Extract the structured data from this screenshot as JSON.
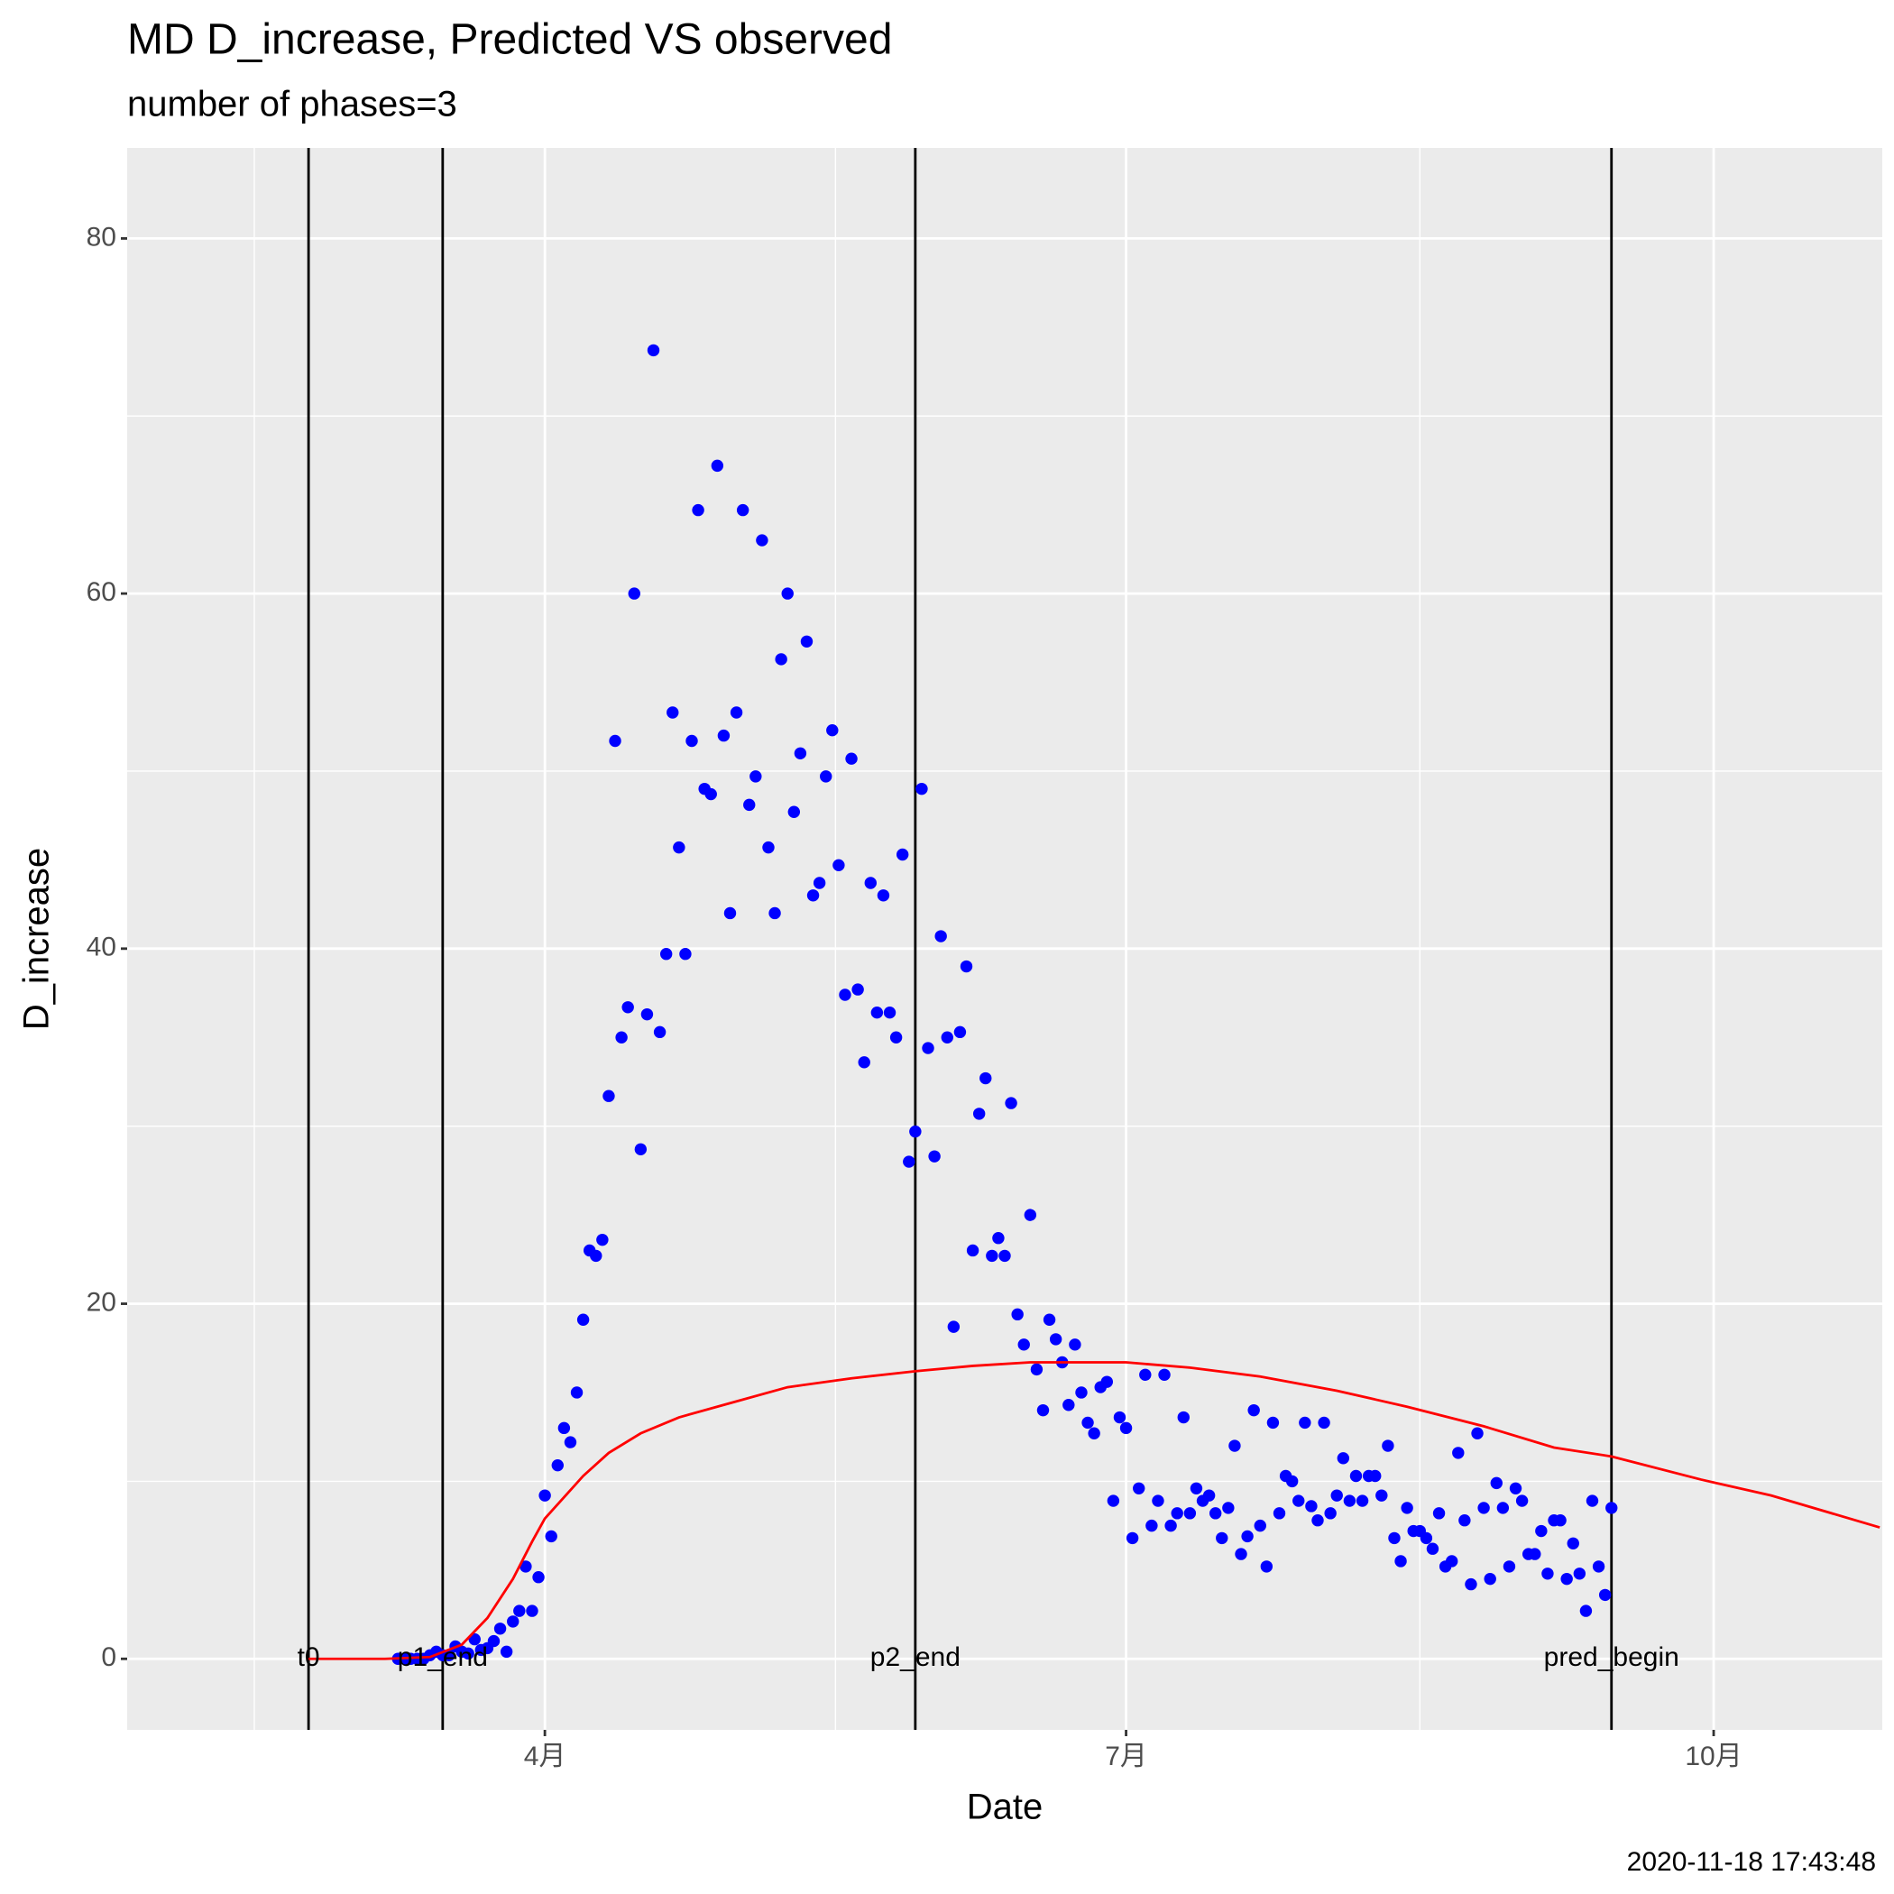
{
  "chart_data": {
    "type": "scatter",
    "title": "MD D_increase, Predicted VS observed",
    "subtitle": "number of phases=3",
    "xlabel": "Date",
    "ylabel": "D_increase",
    "caption": "2020-11-18 17:43:48",
    "xlim": [
      26.6,
      301.4
    ],
    "xticks": [
      {
        "value": 92,
        "label": "4月"
      },
      {
        "value": 183,
        "label": "7月"
      },
      {
        "value": 275,
        "label": "10月"
      }
    ],
    "ylim": [
      -4,
      85.1
    ],
    "yticks": [
      0,
      20,
      40,
      60,
      80
    ],
    "grid": true,
    "background": "#ebebeb",
    "vlines": [
      {
        "x": 55,
        "label": "t0"
      },
      {
        "x": 76,
        "label": "p1_end"
      },
      {
        "x": 150,
        "label": "p2_end"
      },
      {
        "x": 259,
        "label": "pred_begin"
      }
    ],
    "series": [
      {
        "type": "scatter",
        "color": "#0000ff",
        "x": [
          69,
          70,
          71,
          72,
          73,
          74,
          75,
          76,
          77,
          78,
          79,
          80,
          81,
          82,
          83,
          84,
          85,
          86,
          87,
          88,
          89,
          90,
          91,
          92,
          93,
          94,
          95,
          96,
          97,
          98,
          99,
          100,
          101,
          102,
          103,
          104,
          105,
          106,
          107,
          108,
          109,
          110,
          111,
          112,
          113,
          114,
          115,
          116,
          117,
          118,
          119,
          120,
          121,
          122,
          123,
          124,
          125,
          126,
          127,
          128,
          129,
          130,
          131,
          132,
          133,
          134,
          135,
          136,
          137,
          138,
          139,
          140,
          141,
          142,
          143,
          144,
          145,
          146,
          147,
          148,
          149,
          150,
          151,
          152,
          153,
          154,
          155,
          156,
          157,
          158,
          159,
          160,
          161,
          162,
          163,
          164,
          165,
          166,
          167,
          168,
          169,
          170,
          171,
          172,
          173,
          174,
          175,
          176,
          177,
          178,
          179,
          180,
          181,
          182,
          183,
          184,
          185,
          186,
          187,
          188,
          189,
          190,
          191,
          192,
          193,
          194,
          195,
          196,
          197,
          198,
          199,
          200,
          201,
          202,
          203,
          204,
          205,
          206,
          207,
          208,
          209,
          210,
          211,
          212,
          213,
          214,
          215,
          216,
          217,
          218,
          219,
          220,
          221,
          222,
          223,
          224,
          225,
          226,
          227,
          228,
          229,
          230,
          231,
          232,
          233,
          234,
          235,
          236,
          237,
          238,
          239,
          240,
          241,
          242,
          243,
          244,
          245,
          246,
          247,
          248,
          249,
          250,
          251,
          252,
          253,
          254,
          255,
          256,
          257,
          258,
          259
        ],
        "values": [
          0,
          0,
          0,
          0,
          0,
          0.2,
          0.4,
          0.2,
          0.2,
          0.7,
          0.4,
          0.3,
          1.1,
          0.5,
          0.6,
          1,
          1.7,
          0.4,
          2.1,
          2.7,
          5.2,
          2.7,
          4.6,
          9.2,
          6.9,
          10.9,
          13,
          12.2,
          15,
          19.1,
          23,
          22.7,
          23.6,
          31.7,
          51.7,
          35,
          36.7,
          60,
          28.7,
          36.3,
          73.7,
          35.3,
          39.7,
          53.3,
          45.7,
          39.7,
          51.7,
          64.7,
          49,
          48.7,
          67.2,
          52,
          42,
          53.3,
          64.7,
          48.1,
          49.7,
          63,
          45.7,
          42,
          56.3,
          60,
          47.7,
          51,
          57.3,
          43,
          43.7,
          49.7,
          52.3,
          44.7,
          37.4,
          50.7,
          37.7,
          33.6,
          43.7,
          36.4,
          43,
          36.4,
          35,
          45.3,
          28,
          29.7,
          49,
          34.4,
          28.3,
          40.7,
          35,
          18.7,
          35.3,
          39,
          23,
          30.7,
          32.7,
          22.7,
          23.7,
          22.7,
          31.3,
          19.4,
          17.7,
          25,
          16.3,
          14,
          19.1,
          18,
          16.7,
          14.3,
          17.7,
          15,
          13.3,
          12.7,
          15.3,
          15.6,
          8.9,
          13.6,
          13,
          6.8,
          9.6,
          16,
          7.5,
          8.9,
          16,
          7.5,
          8.2,
          13.6,
          8.2,
          9.6,
          8.9,
          9.2,
          8.2,
          6.8,
          8.5,
          12,
          5.9,
          6.9,
          14,
          7.5,
          5.2,
          13.3,
          8.2,
          10.3,
          10,
          8.9,
          13.3,
          8.6,
          7.8,
          13.3,
          8.2,
          9.2,
          11.3,
          8.9,
          10.3,
          8.9,
          10.3,
          10.3,
          9.2,
          12,
          6.8,
          5.5,
          8.5,
          7.2,
          7.2,
          6.8,
          6.2,
          8.2,
          5.2,
          5.5,
          11.6,
          7.8,
          4.2,
          12.7,
          8.5,
          4.5,
          9.9,
          8.5,
          5.2,
          9.6,
          8.9,
          5.9,
          5.9,
          7.2,
          4.8,
          7.8,
          7.8,
          4.5,
          6.5,
          4.8,
          2.7,
          8.9,
          5.2,
          3.6,
          8.5
        ]
      },
      {
        "type": "line",
        "color": "#ff0000",
        "x": [
          55,
          67,
          74,
          79,
          83,
          87,
          90,
          92,
          98,
          102,
          107,
          113,
          121,
          130,
          140,
          150,
          159,
          168,
          183,
          193,
          204,
          216,
          227,
          239,
          250,
          259,
          273,
          284,
          301
        ],
        "values": [
          0,
          0,
          0.1,
          0.8,
          2.3,
          4.5,
          6.6,
          7.9,
          10.3,
          11.6,
          12.7,
          13.6,
          14.4,
          15.3,
          15.8,
          16.2,
          16.5,
          16.7,
          16.7,
          16.4,
          15.9,
          15.1,
          14.2,
          13.1,
          11.9,
          11.4,
          10.1,
          9.2,
          7.4
        ]
      }
    ]
  }
}
